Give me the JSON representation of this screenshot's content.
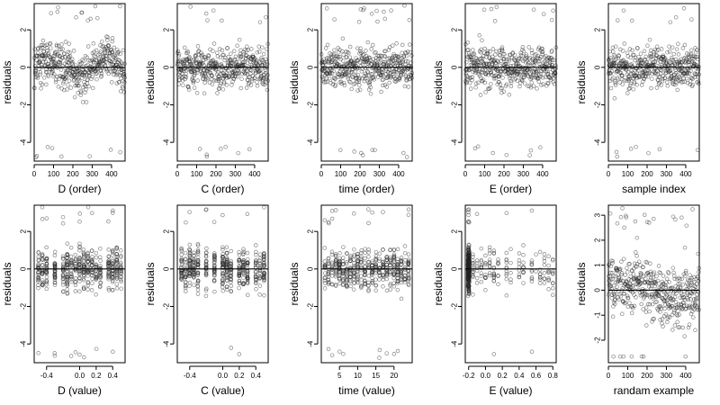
{
  "chart_data": [
    {
      "type": "scatter",
      "id": "D_order",
      "xlabel": "D (order)",
      "ylabel": "residuals",
      "xlim": [
        0,
        470
      ],
      "ylim": [
        -5,
        3.4
      ],
      "xticks": [
        0,
        100,
        200,
        300,
        400
      ],
      "yticks": [
        -4,
        -2,
        0,
        2
      ],
      "zero_line": true,
      "mode": "order",
      "pattern": "wave"
    },
    {
      "type": "scatter",
      "id": "C_order",
      "xlabel": "C (order)",
      "ylabel": "residuals",
      "xlim": [
        0,
        470
      ],
      "ylim": [
        -5,
        3.4
      ],
      "xticks": [
        0,
        100,
        200,
        300,
        400
      ],
      "yticks": [
        -4,
        -2,
        0,
        2
      ],
      "zero_line": true,
      "mode": "order",
      "pattern": "random"
    },
    {
      "type": "scatter",
      "id": "time_order",
      "xlabel": "time (order)",
      "ylabel": "residuals",
      "xlim": [
        0,
        470
      ],
      "ylim": [
        -5,
        3.4
      ],
      "xticks": [
        0,
        100,
        200,
        300,
        400
      ],
      "yticks": [
        -4,
        -2,
        0,
        2
      ],
      "zero_line": true,
      "mode": "order",
      "pattern": "random"
    },
    {
      "type": "scatter",
      "id": "E_order",
      "xlabel": "E (order)",
      "ylabel": "residuals",
      "xlim": [
        0,
        470
      ],
      "ylim": [
        -5,
        3.4
      ],
      "xticks": [
        0,
        100,
        200,
        300,
        400
      ],
      "yticks": [
        -4,
        -2,
        0,
        2
      ],
      "zero_line": true,
      "mode": "order",
      "pattern": "random"
    },
    {
      "type": "scatter",
      "id": "sample_index",
      "xlabel": "sample index",
      "ylabel": "residuals",
      "xlim": [
        0,
        470
      ],
      "ylim": [
        -5,
        3.4
      ],
      "xticks": [
        0,
        100,
        200,
        300,
        400
      ],
      "yticks": [
        -4,
        -2,
        0,
        2
      ],
      "zero_line": true,
      "mode": "order",
      "pattern": "random"
    },
    {
      "type": "scatter",
      "id": "D_value",
      "xlabel": "D (value)",
      "ylabel": "residuals",
      "xlim": [
        -0.55,
        0.55
      ],
      "ylim": [
        -5,
        3.4
      ],
      "xticks": [
        -0.4,
        0,
        0.2,
        0.4
      ],
      "xtick_labels": [
        "-0.4",
        "0.0",
        "0.2",
        "0.4"
      ],
      "yticks": [
        -4,
        -2,
        0,
        2
      ],
      "zero_line": true,
      "mode": "grouped",
      "groups": [
        -0.5,
        -0.45,
        -0.4,
        -0.3,
        -0.2,
        -0.15,
        -0.1,
        -0.05,
        0,
        0.05,
        0.1,
        0.15,
        0.2,
        0.25,
        0.35,
        0.4,
        0.45,
        0.5
      ]
    },
    {
      "type": "scatter",
      "id": "C_value",
      "xlabel": "C (value)",
      "ylabel": "residuals",
      "xlim": [
        -0.55,
        0.55
      ],
      "ylim": [
        -5,
        3.4
      ],
      "xticks": [
        -0.4,
        0,
        0.2,
        0.4
      ],
      "xtick_labels": [
        "-0.4",
        "0.0",
        "0.2",
        "0.4"
      ],
      "yticks": [
        -4,
        -2,
        0,
        2
      ],
      "zero_line": true,
      "mode": "grouped",
      "groups": [
        -0.5,
        -0.45,
        -0.4,
        -0.35,
        -0.3,
        -0.2,
        -0.1,
        0,
        0.05,
        0.1,
        0.2,
        0.25,
        0.3,
        0.4,
        0.45,
        0.5
      ]
    },
    {
      "type": "scatter",
      "id": "time_value",
      "xlabel": "time (value)",
      "ylabel": "residuals",
      "xlim": [
        0,
        25
      ],
      "ylim": [
        -5,
        3.4
      ],
      "xticks": [
        5,
        10,
        15,
        20
      ],
      "yticks": [
        -4,
        -2,
        0,
        2
      ],
      "zero_line": true,
      "mode": "grouped",
      "groups": [
        1,
        2,
        3,
        4,
        5,
        6,
        7,
        8,
        9,
        10,
        11,
        12,
        13,
        14,
        15,
        16,
        17,
        18,
        19,
        20,
        21,
        22,
        23,
        24
      ]
    },
    {
      "type": "scatter",
      "id": "E_value",
      "xlabel": "E (value)",
      "ylabel": "residuals",
      "xlim": [
        -0.24,
        0.84
      ],
      "ylim": [
        -5,
        3.4
      ],
      "xticks": [
        -0.2,
        0,
        0.2,
        0.4,
        0.6,
        0.8
      ],
      "xtick_labels": [
        "-0.2",
        "0.0",
        "0.2",
        "0.4",
        "0.6",
        "0.8"
      ],
      "yticks": [
        -4,
        -2,
        0,
        2
      ],
      "zero_line": true,
      "mode": "skewed",
      "groups": [
        -0.2,
        -0.15,
        -0.1,
        -0.05,
        0,
        0.05,
        0.1,
        0.15,
        0.25,
        0.3,
        0.4,
        0.45,
        0.55,
        0.6,
        0.65,
        0.7,
        0.75,
        0.8
      ]
    },
    {
      "type": "scatter",
      "id": "random_example",
      "xlabel": "randam example",
      "ylabel": "residuals",
      "xlim": [
        0,
        470
      ],
      "ylim": [
        -2.9,
        3.4
      ],
      "xticks": [
        0,
        100,
        200,
        300,
        400
      ],
      "yticks": [
        -2,
        -1,
        0,
        1,
        2,
        3
      ],
      "zero_line": true,
      "mode": "order",
      "pattern": "trend"
    }
  ]
}
